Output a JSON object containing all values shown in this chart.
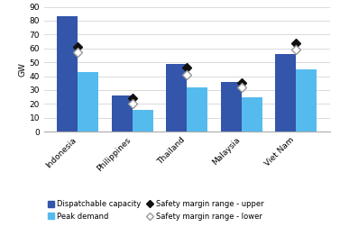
{
  "categories": [
    "Indonesia",
    "Philippines",
    "Thailand",
    "Malaysia",
    "Viet Nam"
  ],
  "dispatchable_capacity": [
    83,
    26,
    49,
    36,
    56
  ],
  "peak_demand": [
    43,
    16,
    32,
    25,
    45
  ],
  "safety_upper": [
    61,
    24,
    46,
    35,
    64
  ],
  "safety_lower": [
    57,
    20,
    41,
    32,
    59
  ],
  "bar_color_dispatch": "#3355aa",
  "bar_color_peak": "#55bbee",
  "marker_upper_color": "#111111",
  "marker_lower_color": "#999999",
  "ylabel": "GW",
  "ylim": [
    0,
    90
  ],
  "yticks": [
    0,
    10,
    20,
    30,
    40,
    50,
    60,
    70,
    80,
    90
  ],
  "legend_dispatch": "Dispatchable capacity",
  "legend_peak": "Peak demand",
  "legend_upper": "Safety margin range - upper",
  "legend_lower": "Safety margin range - lower",
  "bar_width": 0.38,
  "label_fontsize": 6.5,
  "legend_fontsize": 6.0
}
